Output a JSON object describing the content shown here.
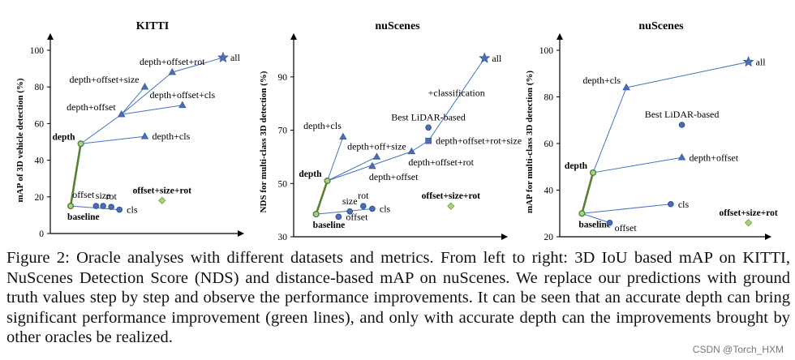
{
  "chart_data": [
    {
      "type": "scatter",
      "title": "KITTI",
      "xlabel": "",
      "ylabel": "mAP of 3D vehicle detection (%)",
      "ylim": [
        0,
        100
      ],
      "yticks": [
        0,
        20,
        40,
        60,
        80,
        100
      ],
      "points": [
        {
          "label": "baseline",
          "x": 2,
          "y": 15,
          "marker": "green-circle",
          "label_style": "bold",
          "label_pos": "below"
        },
        {
          "label": "depth",
          "x": 3,
          "y": 49,
          "marker": "green-circle",
          "label_style": "bold",
          "label_pos": "left"
        },
        {
          "label": "offset",
          "x": 4.5,
          "y": 15,
          "marker": "circle",
          "label_pos": "above-left"
        },
        {
          "label": "size",
          "x": 5.2,
          "y": 15,
          "marker": "circle",
          "label_pos": "above"
        },
        {
          "label": "rot",
          "x": 6,
          "y": 14.5,
          "marker": "circle",
          "label_pos": "above"
        },
        {
          "label": "cls",
          "x": 6.8,
          "y": 13,
          "marker": "circle",
          "label_pos": "right"
        },
        {
          "label": "depth+offset",
          "x": 7,
          "y": 65,
          "marker": "triangle",
          "label_pos": "left"
        },
        {
          "label": "depth+offset+size",
          "x": 9.3,
          "y": 80,
          "marker": "triangle",
          "label_pos": "left"
        },
        {
          "label": "depth+offset+rot",
          "x": 12,
          "y": 88,
          "marker": "triangle",
          "label_pos": "above"
        },
        {
          "label": "depth+offset+cls",
          "x": 13,
          "y": 70,
          "marker": "triangle",
          "label_pos": "above"
        },
        {
          "label": "depth+cls",
          "x": 9.3,
          "y": 53,
          "marker": "triangle",
          "label_pos": "right"
        },
        {
          "label": "all",
          "x": 17,
          "y": 96,
          "marker": "star",
          "label_pos": "right"
        },
        {
          "label": "offset+size+rot",
          "x": 11,
          "y": 18,
          "marker": "diamond",
          "label_style": "bold",
          "label_pos": "above"
        }
      ],
      "lines": [
        {
          "from": "baseline",
          "to": "depth",
          "color": "green"
        },
        {
          "from": "depth",
          "to": "depth+offset"
        },
        {
          "from": "depth",
          "to": "depth+cls"
        },
        {
          "from": "depth+offset",
          "to": "depth+offset+size"
        },
        {
          "from": "depth+offset",
          "to": "depth+offset+rot"
        },
        {
          "from": "depth+offset",
          "to": "depth+offset+cls"
        },
        {
          "from": "depth+offset+rot",
          "to": "all"
        },
        {
          "from": "baseline",
          "to": "cls"
        }
      ]
    },
    {
      "type": "scatter",
      "title": "nuScenes",
      "xlabel": "",
      "ylabel": "NDS for multi-class 3D detection (%)",
      "ylim": [
        30,
        100
      ],
      "yticks": [
        30,
        50,
        70,
        90
      ],
      "points": [
        {
          "label": "baseline",
          "x": 2,
          "y": 38.5,
          "marker": "green-circle",
          "label_style": "bold",
          "label_pos": "below"
        },
        {
          "label": "depth",
          "x": 3,
          "y": 51,
          "marker": "green-circle",
          "label_style": "bold",
          "label_pos": "left"
        },
        {
          "label": "offset",
          "x": 4,
          "y": 37.5,
          "marker": "circle",
          "label_pos": "right"
        },
        {
          "label": "size",
          "x": 5,
          "y": 39.5,
          "marker": "circle",
          "label_pos": "above"
        },
        {
          "label": "rot",
          "x": 6.2,
          "y": 41.5,
          "marker": "circle",
          "label_pos": "above"
        },
        {
          "label": "cls",
          "x": 7,
          "y": 40.5,
          "marker": "circle",
          "label_pos": "right"
        },
        {
          "label": "depth+cls",
          "x": 4.4,
          "y": 67.5,
          "marker": "triangle",
          "label_pos": "above-left"
        },
        {
          "label": "depth+off+size",
          "x": 7.4,
          "y": 60,
          "marker": "triangle",
          "label_pos": "above"
        },
        {
          "label": "depth+offset",
          "x": 7,
          "y": 56.5,
          "marker": "triangle",
          "label_pos": "below"
        },
        {
          "label": "depth+offset+rot",
          "x": 10.5,
          "y": 62,
          "marker": "triangle",
          "label_pos": "below"
        },
        {
          "label": "depth+offset+rot+size",
          "x": 12,
          "y": 66,
          "marker": "square",
          "label_pos": "right"
        },
        {
          "label": "Best LiDAR-based",
          "x": 12,
          "y": 71,
          "marker": "circle",
          "label_pos": "above"
        },
        {
          "label": "all",
          "x": 17,
          "y": 97,
          "marker": "star",
          "label_pos": "right"
        },
        {
          "label": "offset+size+rot",
          "x": 14,
          "y": 41.5,
          "marker": "diamond",
          "label_style": "bold",
          "label_pos": "above"
        }
      ],
      "lines": [
        {
          "from": "baseline",
          "to": "depth",
          "color": "green"
        },
        {
          "from": "depth",
          "to": "depth+cls"
        },
        {
          "from": "depth",
          "to": "depth+off+size"
        },
        {
          "from": "depth",
          "to": "depth+offset+rot"
        },
        {
          "from": "depth+offset+rot",
          "to": "depth+offset+rot+size"
        },
        {
          "from": "depth+offset+rot+size",
          "to": "all"
        },
        {
          "from": "baseline",
          "to": "cls"
        }
      ],
      "annotations": [
        {
          "text": "+classification",
          "x": 14.5,
          "y": 84
        }
      ]
    },
    {
      "type": "scatter",
      "title": "nuScenes",
      "xlabel": "",
      "ylabel": "mAP for multi-class 3D detection (%)",
      "ylim": [
        20,
        100
      ],
      "yticks": [
        20,
        40,
        60,
        80,
        100
      ],
      "points": [
        {
          "label": "baseline",
          "x": 2,
          "y": 30,
          "marker": "green-circle",
          "label_style": "bold",
          "label_pos": "below"
        },
        {
          "label": "depth",
          "x": 3,
          "y": 47.5,
          "marker": "green-circle",
          "label_style": "bold",
          "label_pos": "left"
        },
        {
          "label": "offset",
          "x": 4.5,
          "y": 26,
          "marker": "circle",
          "label_pos": "below-right"
        },
        {
          "label": "cls",
          "x": 10,
          "y": 34,
          "marker": "circle",
          "label_pos": "right"
        },
        {
          "label": "Best LiDAR-based",
          "x": 11,
          "y": 68,
          "marker": "circle",
          "label_pos": "above"
        },
        {
          "label": "depth+cls",
          "x": 6,
          "y": 84,
          "marker": "triangle",
          "label_pos": "left"
        },
        {
          "label": "depth+offset",
          "x": 11,
          "y": 54,
          "marker": "triangle",
          "label_pos": "right"
        },
        {
          "label": "all",
          "x": 17,
          "y": 95,
          "marker": "star",
          "label_pos": "right"
        },
        {
          "label": "offset+size+rot",
          "x": 17,
          "y": 26,
          "marker": "diamond",
          "label_style": "bold",
          "label_pos": "above"
        }
      ],
      "lines": [
        {
          "from": "baseline",
          "to": "depth",
          "color": "green"
        },
        {
          "from": "depth",
          "to": "depth+cls"
        },
        {
          "from": "depth",
          "to": "depth+offset"
        },
        {
          "from": "depth+cls",
          "to": "all"
        },
        {
          "from": "baseline",
          "to": "offset"
        },
        {
          "from": "baseline",
          "to": "cls"
        }
      ]
    }
  ],
  "colors": {
    "primary": "#4472c4",
    "marker_fill": "#4a6fb5",
    "marker_edge": "#2f4d8a",
    "green_line": "#548235",
    "green_marker": "#a9d08e",
    "diamond": "#70ad47"
  },
  "caption": "Figure 2: Oracle analyses with different datasets and metrics. From left to right: 3D IoU based mAP on KITTI, NuScenes Detection Score (NDS) and distance-based mAP on nuScenes. We replace our predictions with ground truth values step by step and observe the performance improvements. It can be seen that an accurate depth can bring significant performance improvement (green lines), and only with accurate depth can the improvements brought by other oracles be realized.",
  "watermark": "CSDN @Torch_HXM"
}
